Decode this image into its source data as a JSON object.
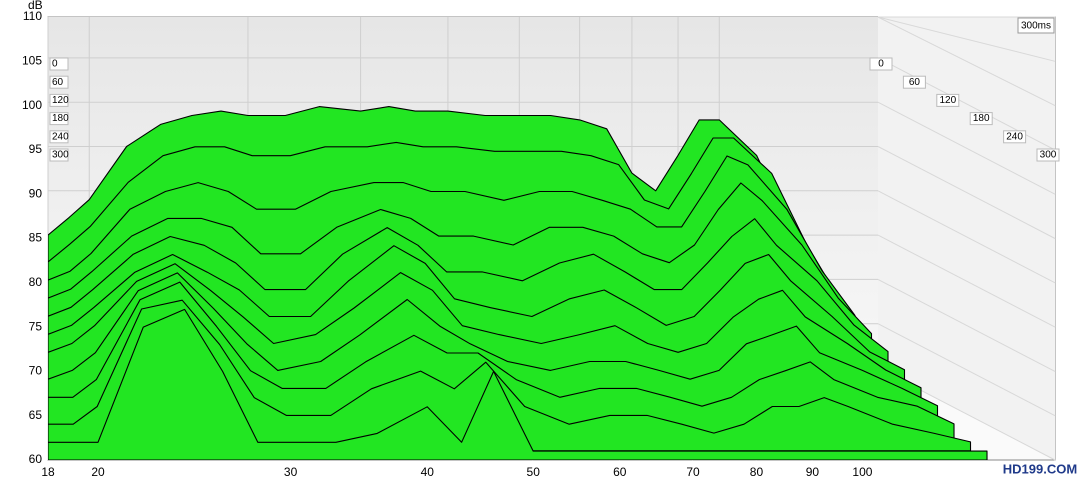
{
  "chart_data": {
    "type": "waterfall",
    "y_label": "dB",
    "time_label": "300ms",
    "color": "#22e622",
    "x": [
      18,
      19,
      20,
      22,
      24,
      26,
      28,
      30,
      33,
      36,
      40,
      43,
      46,
      50,
      55,
      60,
      65,
      70,
      75,
      80,
      85,
      90,
      95,
      100,
      110,
      120,
      130
    ],
    "xlim": [
      18,
      150
    ],
    "xticks": [
      18,
      20,
      30,
      40,
      50,
      60,
      70,
      80,
      90,
      100
    ],
    "ylim": [
      60,
      110
    ],
    "yticks": [
      60,
      65,
      70,
      75,
      80,
      85,
      90,
      95,
      100,
      105,
      110
    ],
    "zlim": [
      0,
      300
    ],
    "zticks": [
      0,
      60,
      120,
      180,
      240,
      300
    ],
    "series": [
      {
        "z": 0,
        "values": [
          75,
          77,
          79,
          85,
          87.5,
          88.5,
          89,
          88.5,
          88.5,
          89.5,
          89,
          89.5,
          89,
          89,
          88.5,
          88.5,
          88.5,
          88,
          87,
          82,
          80,
          84,
          88,
          88,
          84,
          76,
          70
        ]
      },
      {
        "z": 30,
        "values": [
          73,
          75,
          77,
          82,
          85,
          86,
          86,
          85,
          85,
          86,
          86,
          86.5,
          86,
          86,
          85.5,
          85.5,
          85.5,
          85,
          84,
          80,
          79,
          83,
          87,
          87,
          83,
          75,
          69
        ]
      },
      {
        "z": 60,
        "values": [
          72,
          73,
          75,
          80,
          82,
          83,
          82,
          80,
          80,
          82,
          83,
          83,
          82,
          82,
          81,
          82,
          82,
          81,
          80,
          78,
          78,
          82,
          86,
          85,
          80,
          73,
          68
        ]
      },
      {
        "z": 90,
        "values": [
          71,
          72,
          74,
          78,
          80,
          80,
          79,
          76,
          76,
          79,
          81,
          80,
          78,
          78,
          77,
          79,
          79,
          78,
          76,
          75,
          77,
          81,
          84,
          82,
          77,
          71,
          67
        ]
      },
      {
        "z": 120,
        "values": [
          70,
          71,
          73,
          77,
          79,
          78,
          76,
          73,
          73,
          77,
          80,
          78,
          75,
          75,
          74,
          76,
          77,
          75,
          73,
          73,
          76,
          79,
          81,
          78,
          74,
          69,
          66
        ]
      },
      {
        "z": 150,
        "values": [
          69,
          70,
          72,
          76,
          78,
          76,
          74,
          71,
          71,
          75,
          79,
          77,
          73,
          72,
          71,
          73,
          74,
          72,
          70,
          71,
          74,
          77,
          78,
          75,
          71,
          67,
          65
        ]
      },
      {
        "z": 180,
        "values": [
          68,
          69,
          71,
          76,
          78,
          75,
          72,
          69,
          70,
          73,
          77,
          75,
          71,
          70,
          69,
          70,
          71,
          69,
          68,
          69,
          72,
          74,
          75,
          72,
          69,
          66,
          64
        ]
      },
      {
        "z": 210,
        "values": [
          66,
          67,
          69,
          76,
          78,
          74,
          70,
          67,
          68,
          71,
          75,
          72,
          70,
          68,
          67,
          68,
          68,
          67,
          66,
          67,
          70,
          71,
          72,
          69,
          67,
          65,
          63
        ]
      },
      {
        "z": 240,
        "values": [
          65,
          65,
          67,
          76,
          78,
          73,
          68,
          66,
          66,
          69,
          72,
          70,
          70,
          67,
          65,
          66,
          66,
          65,
          64,
          65,
          67,
          68,
          69,
          67,
          65,
          64,
          62
        ]
      },
      {
        "z": 270,
        "values": [
          63,
          63,
          65,
          76,
          77,
          72,
          66,
          64,
          64,
          67,
          69,
          67,
          70,
          65,
          63,
          64,
          64,
          63,
          62,
          63,
          65,
          65,
          66,
          65,
          63,
          62,
          61
        ]
      },
      {
        "z": 300,
        "values": [
          62,
          62,
          62,
          75,
          77,
          70,
          62,
          62,
          62,
          63,
          66,
          62,
          70,
          61,
          61,
          61,
          61,
          61,
          61,
          61,
          61,
          61,
          61,
          61,
          61,
          61,
          61
        ]
      }
    ]
  },
  "watermark": "HD199.COM"
}
